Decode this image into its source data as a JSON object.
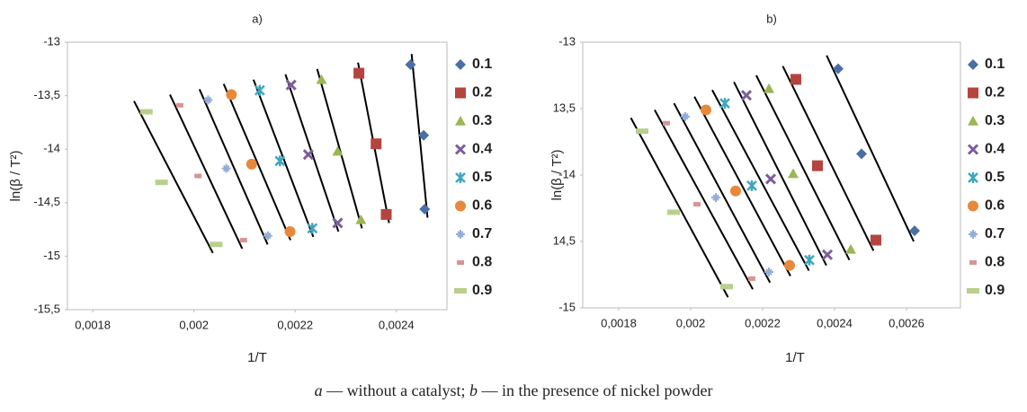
{
  "chart_data": [
    {
      "type": "scatter",
      "title": "a)",
      "x_label": "1/T",
      "y_label": "ln(β / T²)",
      "xlim": [
        0.00175,
        0.0025
      ],
      "ylim": [
        -15.5,
        -13
      ],
      "xticks": [
        {
          "value": 0.0018,
          "label": "0,0018"
        },
        {
          "value": 0.002,
          "label": "0,002"
        },
        {
          "value": 0.0022,
          "label": "0,0022"
        },
        {
          "value": 0.0024,
          "label": "0,0024"
        }
      ],
      "yticks": [
        -13,
        {
          "value": -13.5,
          "label": "-13,5"
        },
        -14,
        {
          "value": -14.5,
          "label": "-14,5"
        },
        -15,
        {
          "value": -15.5,
          "label": "-15,5"
        }
      ],
      "trendlines": true,
      "series": [
        {
          "name": "0.1",
          "color": "#4a6fa5",
          "marker": "diamond",
          "x": [
            0.002428,
            0.002454,
            0.002456
          ],
          "values": [
            -13.21,
            -13.87,
            -14.56
          ]
        },
        {
          "name": "0.2",
          "color": "#b5443f",
          "marker": "square",
          "x": [
            0.002326,
            0.00236,
            0.00238
          ],
          "values": [
            -13.29,
            -13.95,
            -14.61
          ]
        },
        {
          "name": "0.3",
          "color": "#9ab753",
          "marker": "triangle",
          "x": [
            0.002252,
            0.002284,
            0.00233
          ],
          "values": [
            -13.35,
            -14.02,
            -14.66
          ]
        },
        {
          "name": "0.4",
          "color": "#7c5e9c",
          "marker": "x",
          "x": [
            0.002192,
            0.002226,
            0.002284
          ],
          "values": [
            -13.4,
            -14.05,
            -14.69
          ]
        },
        {
          "name": "0.5",
          "color": "#3fa6bf",
          "marker": "asterisk",
          "x": [
            0.00213,
            0.00217,
            0.002234
          ],
          "values": [
            -13.45,
            -14.11,
            -14.74
          ]
        },
        {
          "name": "0.6",
          "color": "#e8883a",
          "marker": "circle",
          "x": [
            0.002074,
            0.002114,
            0.00219
          ],
          "values": [
            -13.49,
            -14.14,
            -14.77
          ]
        },
        {
          "name": "0.7",
          "color": "#93acd9",
          "marker": "plus",
          "x": [
            0.002028,
            0.002064,
            0.002146
          ],
          "values": [
            -13.54,
            -14.18,
            -14.81
          ]
        },
        {
          "name": "0.8",
          "color": "#d99493",
          "marker": "shortdash",
          "x": [
            0.001972,
            0.002008,
            0.002098
          ],
          "values": [
            -13.59,
            -14.25,
            -14.85
          ]
        },
        {
          "name": "0.9",
          "color": "#b9cf8c",
          "marker": "dash",
          "x": [
            0.001906,
            0.001936,
            0.002044
          ],
          "values": [
            -13.65,
            -14.31,
            -14.89
          ]
        }
      ]
    },
    {
      "type": "scatter",
      "title": "b)",
      "x_label": "1/T",
      "y_label": "ln(β / T²)",
      "xlim": [
        0.0017,
        0.00275
      ],
      "ylim": [
        -15,
        -13
      ],
      "xticks": [
        {
          "value": 0.0018,
          "label": "0,0018"
        },
        {
          "value": 0.002,
          "label": "0,002"
        },
        {
          "value": 0.0022,
          "label": "0,0022"
        },
        {
          "value": 0.0024,
          "label": "0,0024"
        },
        {
          "value": 0.0026,
          "label": "0,0026"
        }
      ],
      "yticks": [
        -13,
        {
          "value": -13.5,
          "label": "13,5"
        },
        -14,
        {
          "value": -14.5,
          "label": "14,5"
        },
        -15
      ],
      "trendlines": true,
      "series": [
        {
          "name": "0.1",
          "color": "#4a6fa5",
          "marker": "diamond",
          "x": [
            0.00241,
            0.002475,
            0.0026225
          ],
          "values": [
            -13.2,
            -13.84,
            -14.42
          ]
        },
        {
          "name": "0.2",
          "color": "#b5443f",
          "marker": "square",
          "x": [
            0.0022925,
            0.0023525,
            0.002515
          ],
          "values": [
            -13.28,
            -13.93,
            -14.49
          ]
        },
        {
          "name": "0.3",
          "color": "#9ab753",
          "marker": "triangle",
          "x": [
            0.0022175,
            0.002285,
            0.002445
          ],
          "values": [
            -13.35,
            -13.99,
            -14.56
          ]
        },
        {
          "name": "0.4",
          "color": "#7c5e9c",
          "marker": "x",
          "x": [
            0.002155,
            0.0022225,
            0.00238
          ],
          "values": [
            -13.4,
            -14.03,
            -14.6
          ]
        },
        {
          "name": "0.5",
          "color": "#3fa6bf",
          "marker": "asterisk",
          "x": [
            0.002095,
            0.00217,
            0.00233
          ],
          "values": [
            -13.46,
            -14.08,
            -14.64
          ]
        },
        {
          "name": "0.6",
          "color": "#e8883a",
          "marker": "circle",
          "x": [
            0.0020425,
            0.002125,
            0.002275
          ],
          "values": [
            -13.51,
            -14.12,
            -14.68
          ]
        },
        {
          "name": "0.7",
          "color": "#93acd9",
          "marker": "plus",
          "x": [
            0.001985,
            0.00207,
            0.0022175
          ],
          "values": [
            -13.56,
            -14.17,
            -14.73
          ]
        },
        {
          "name": "0.8",
          "color": "#d99493",
          "marker": "shortdash",
          "x": [
            0.0019325,
            0.0020175,
            0.00217
          ],
          "values": [
            -13.61,
            -14.22,
            -14.78
          ]
        },
        {
          "name": "0.9",
          "color": "#b9cf8c",
          "marker": "dash",
          "x": [
            0.001865,
            0.0019525,
            0.0021
          ],
          "values": [
            -13.67,
            -14.28,
            -14.84
          ]
        }
      ]
    }
  ],
  "caption": [
    "a",
    " — without a catalyst; ",
    "b",
    " — in the presence of nickel powder"
  ]
}
